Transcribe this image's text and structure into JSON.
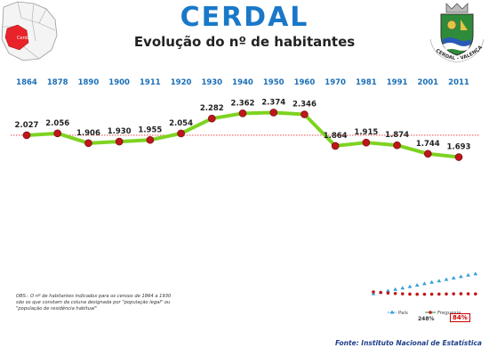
{
  "header": {
    "title": "CERDAL",
    "subtitle": "Evolução do nº de habitantes",
    "map_label": "Cerdal",
    "crest_label": "CERDAL - VALENÇA"
  },
  "chart_data": {
    "type": "line",
    "title": "Evolução do nº de habitantes",
    "categories": [
      "1864",
      "1878",
      "1890",
      "1900",
      "1911",
      "1920",
      "1930",
      "1940",
      "1950",
      "1960",
      "1970",
      "1981",
      "1991",
      "2001",
      "2011"
    ],
    "series": [
      {
        "name": "Freguesia",
        "values": [
          2027,
          2056,
          1906,
          1930,
          1955,
          2054,
          2282,
          2362,
          2374,
          2346,
          1864,
          1915,
          1874,
          1744,
          1693
        ],
        "labels": [
          "2.027",
          "2.056",
          "1.906",
          "1.930",
          "1.955",
          "2.054",
          "2.282",
          "2.362",
          "2.374",
          "2.346",
          "1.864",
          "1.915",
          "1.874",
          "1.744",
          "1.693"
        ],
        "color": "#7ed321"
      }
    ],
    "reference_line": 2027,
    "ylim": [
      1400,
      2600
    ],
    "grid": false
  },
  "mini_chart": {
    "legend": [
      "País",
      "Freguesia"
    ],
    "pais_pct": "248%",
    "freguesia_pct": "84%",
    "pais_color": "#3aa0d8",
    "freguesia_color": "#c0161b"
  },
  "note": "OBS.: O nº de habitantes indicados para os censos de 1864 a 1930 são os que constam da coluna designada por \"população legal\" ou \"população de residência habitual\"",
  "source": "Fonte: Instituto Nacional de Estatística",
  "colors": {
    "title": "#1a78c8",
    "year": "#1a6fb8",
    "line": "#7ed321",
    "marker": "#c0161b",
    "reference": "#e03030"
  }
}
